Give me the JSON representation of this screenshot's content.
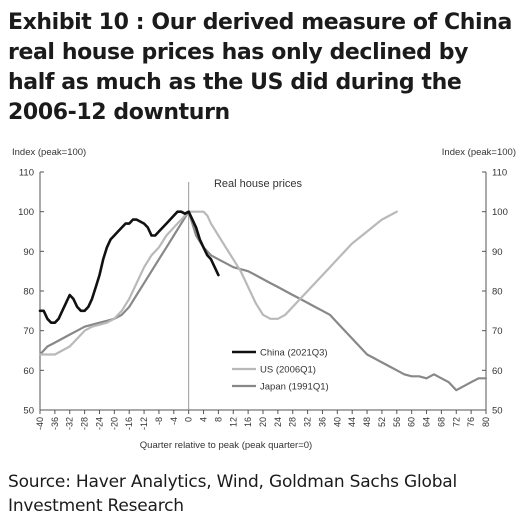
{
  "exhibit": {
    "title": "Exhibit 10 : Our derived measure of China real house prices has only declined by half as much as the US did during the 2006-12 downturn",
    "source": "Source: Haver Analytics, Wind, Goldman Sachs Global Investment Research"
  },
  "chart_data": {
    "type": "line",
    "title": "Real house prices",
    "xlabel": "Quarter relative to peak (peak quarter=0)",
    "ylabel_left": "Index (peak=100)",
    "ylabel_right": "Index (peak=100)",
    "xlim": [
      -40,
      80
    ],
    "ylim": [
      50,
      110
    ],
    "x_ticks": [
      "-40",
      "-36",
      "-32",
      "-28",
      "-24",
      "-20",
      "-16",
      "-12",
      "-8",
      "-4",
      "0",
      "4",
      "8",
      "12",
      "16",
      "20",
      "24",
      "28",
      "32",
      "36",
      "40",
      "44",
      "48",
      "52",
      "56",
      "60",
      "64",
      "68",
      "72",
      "76",
      "80"
    ],
    "y_ticks": [
      "50",
      "60",
      "70",
      "80",
      "90",
      "100",
      "110"
    ],
    "peak_line_x": 0,
    "legend_position": "lower-center",
    "series": [
      {
        "name": "China (2021Q3)",
        "color": "#111111",
        "x": [
          -40,
          -39,
          -38,
          -37,
          -36,
          -35,
          -34,
          -33,
          -32,
          -31,
          -30,
          -29,
          -28,
          -27,
          -26,
          -25,
          -24,
          -23,
          -22,
          -21,
          -20,
          -19,
          -18,
          -17,
          -16,
          -15,
          -14,
          -13,
          -12,
          -11,
          -10,
          -9,
          -8,
          -7,
          -6,
          -5,
          -4,
          -3,
          -2,
          -1,
          0,
          1,
          2,
          3,
          4,
          5,
          6,
          7,
          8
        ],
        "y": [
          75,
          75,
          73,
          72,
          72,
          73,
          75,
          77,
          79,
          78,
          76,
          75,
          75,
          76,
          78,
          81,
          84,
          88,
          91,
          93,
          94,
          95,
          96,
          97,
          97,
          98,
          98,
          97.5,
          97,
          96,
          94,
          94,
          95,
          96,
          97,
          98,
          99,
          100,
          100,
          99.5,
          100,
          98,
          96,
          93,
          91,
          89,
          88,
          86,
          84
        ]
      },
      {
        "name": "US (2006Q1)",
        "color": "#b9b9b9",
        "x": [
          -40,
          -38,
          -36,
          -34,
          -32,
          -30,
          -28,
          -26,
          -24,
          -22,
          -20,
          -18,
          -16,
          -14,
          -12,
          -10,
          -8,
          -6,
          -4,
          -2,
          0,
          1,
          2,
          3,
          4,
          5,
          6,
          8,
          10,
          12,
          14,
          16,
          18,
          20,
          22,
          24,
          26,
          28,
          30,
          32,
          34,
          36,
          38,
          40,
          42,
          44,
          46,
          48,
          50,
          52,
          54,
          56
        ],
        "y": [
          64,
          64,
          64,
          65,
          66,
          68,
          70,
          71,
          71.5,
          72,
          73,
          75,
          78,
          82,
          86,
          89,
          91,
          94,
          96,
          98,
          100,
          100,
          100,
          100,
          100,
          99,
          97,
          94,
          91,
          88,
          85,
          81,
          77,
          74,
          73,
          73,
          74,
          76,
          78,
          80,
          82,
          84,
          86,
          88,
          90,
          92,
          93.5,
          95,
          96.5,
          98,
          99,
          100
        ]
      },
      {
        "name": "Japan (1991Q1)",
        "color": "#888888",
        "x": [
          -40,
          -38,
          -36,
          -34,
          -32,
          -30,
          -28,
          -26,
          -24,
          -22,
          -20,
          -18,
          -16,
          -14,
          -12,
          -10,
          -8,
          -6,
          -4,
          -2,
          0,
          2,
          4,
          6,
          8,
          10,
          12,
          14,
          16,
          18,
          20,
          22,
          24,
          26,
          28,
          30,
          32,
          34,
          36,
          38,
          40,
          42,
          44,
          46,
          48,
          50,
          52,
          54,
          56,
          58,
          60,
          62,
          64,
          66,
          68,
          70,
          72,
          74,
          76,
          78,
          80
        ],
        "y": [
          64,
          66,
          67,
          68,
          69,
          70,
          71,
          71.5,
          72,
          72.5,
          73,
          74,
          76,
          79,
          82,
          85,
          88,
          91,
          94,
          97,
          100,
          94,
          91,
          89,
          88,
          87,
          86,
          85.5,
          85,
          84,
          83,
          82,
          81,
          80,
          79,
          78,
          77,
          76,
          75,
          74,
          72,
          70,
          68,
          66,
          64,
          63,
          62,
          61,
          60,
          59,
          58.5,
          58.5,
          58,
          59,
          58,
          57,
          55,
          56,
          57,
          58,
          58
        ]
      }
    ]
  }
}
